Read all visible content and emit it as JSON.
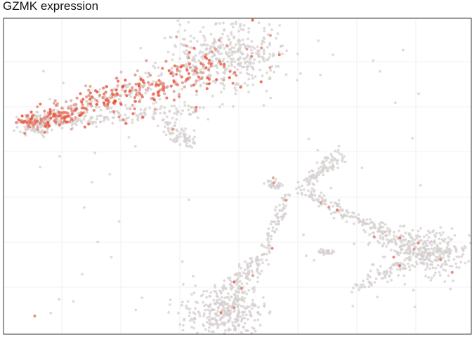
{
  "chart_data": {
    "type": "scatter",
    "title": "GZMK expression",
    "xlabel": "",
    "ylabel": "",
    "grid": true,
    "legend": "none",
    "colors": {
      "background": "#ffffff",
      "panel_border": "#333333",
      "grid": "#ebebeb",
      "base_points": "#d6cfcf",
      "low_expression": "#f0a898",
      "high_expression": "#ee4a2e"
    },
    "clusters": [
      {
        "name": "upper-main",
        "expr": 0.05,
        "seed": 11,
        "polyline": [
          [
            0.42,
            0.88
          ],
          [
            0.47,
            0.9
          ],
          [
            0.5,
            0.9
          ],
          [
            0.54,
            0.85
          ]
        ],
        "widths": [
          0.05,
          0.06,
          0.06,
          0.05
        ],
        "n": 420
      },
      {
        "name": "upper-arm",
        "expr": 0.55,
        "seed": 23,
        "polyline": [
          [
            0.06,
            0.67
          ],
          [
            0.12,
            0.69
          ],
          [
            0.2,
            0.74
          ],
          [
            0.28,
            0.77
          ],
          [
            0.37,
            0.8
          ],
          [
            0.44,
            0.83
          ]
        ],
        "widths": [
          0.018,
          0.02,
          0.025,
          0.03,
          0.035,
          0.04
        ],
        "n": 520
      },
      {
        "name": "upper-underside",
        "expr": 0.1,
        "seed": 31,
        "polyline": [
          [
            0.12,
            0.66
          ],
          [
            0.22,
            0.68
          ],
          [
            0.33,
            0.7
          ],
          [
            0.42,
            0.71
          ]
        ],
        "widths": [
          0.01,
          0.012,
          0.014,
          0.016
        ],
        "n": 140
      },
      {
        "name": "upper-tail",
        "expr": 0.02,
        "seed": 37,
        "polyline": [
          [
            0.33,
            0.68
          ],
          [
            0.38,
            0.63
          ],
          [
            0.4,
            0.6
          ]
        ],
        "widths": [
          0.012,
          0.014,
          0.012
        ],
        "n": 70
      },
      {
        "name": "left-blob",
        "expr": 0.1,
        "seed": 41,
        "polyline": [
          [
            0.05,
            0.66
          ],
          [
            0.09,
            0.67
          ]
        ],
        "widths": [
          0.02,
          0.02
        ],
        "n": 90
      },
      {
        "name": "bottom-left",
        "expr": 0.01,
        "seed": 53,
        "polyline": [
          [
            0.43,
            0.08
          ],
          [
            0.47,
            0.06
          ],
          [
            0.51,
            0.07
          ]
        ],
        "widths": [
          0.04,
          0.04,
          0.035
        ],
        "n": 300
      },
      {
        "name": "bottom-left-arm",
        "expr": 0.05,
        "seed": 59,
        "polyline": [
          [
            0.47,
            0.08
          ],
          [
            0.54,
            0.2
          ],
          [
            0.58,
            0.34
          ],
          [
            0.61,
            0.45
          ]
        ],
        "widths": [
          0.012,
          0.01,
          0.008,
          0.006
        ],
        "n": 150
      },
      {
        "name": "bottom-left-branch",
        "expr": 0.01,
        "seed": 61,
        "polyline": [
          [
            0.45,
            0.12
          ],
          [
            0.5,
            0.18
          ],
          [
            0.54,
            0.24
          ]
        ],
        "widths": [
          0.01,
          0.01,
          0.01
        ],
        "n": 60
      },
      {
        "name": "right-blob",
        "expr": 0.01,
        "seed": 67,
        "polyline": [
          [
            0.87,
            0.27
          ],
          [
            0.91,
            0.26
          ],
          [
            0.94,
            0.24
          ]
        ],
        "widths": [
          0.035,
          0.04,
          0.035
        ],
        "n": 320
      },
      {
        "name": "right-diagonal",
        "expr": 0.01,
        "seed": 71,
        "polyline": [
          [
            0.64,
            0.46
          ],
          [
            0.72,
            0.39
          ],
          [
            0.8,
            0.33
          ],
          [
            0.87,
            0.28
          ]
        ],
        "widths": [
          0.012,
          0.012,
          0.015,
          0.02
        ],
        "n": 200
      },
      {
        "name": "right-lower-arm",
        "expr": 0.01,
        "seed": 73,
        "polyline": [
          [
            0.75,
            0.14
          ],
          [
            0.8,
            0.18
          ],
          [
            0.86,
            0.22
          ]
        ],
        "widths": [
          0.01,
          0.012,
          0.015
        ],
        "n": 70
      },
      {
        "name": "upper-right-arm",
        "expr": 0.01,
        "seed": 79,
        "polyline": [
          [
            0.64,
            0.47
          ],
          [
            0.68,
            0.52
          ],
          [
            0.72,
            0.57
          ]
        ],
        "widths": [
          0.008,
          0.01,
          0.012
        ],
        "n": 90
      },
      {
        "name": "small-cluster-a",
        "expr": 0.02,
        "seed": 83,
        "polyline": [
          [
            0.57,
            0.48
          ],
          [
            0.59,
            0.47
          ]
        ],
        "widths": [
          0.008,
          0.008
        ],
        "n": 30
      },
      {
        "name": "small-cluster-b",
        "expr": 0.01,
        "seed": 89,
        "polyline": [
          [
            0.67,
            0.26
          ],
          [
            0.7,
            0.26
          ]
        ],
        "widths": [
          0.005,
          0.005
        ],
        "n": 25
      }
    ],
    "outlier_seed": 97,
    "outlier_count": 70,
    "outlier_expr": 0.02
  }
}
